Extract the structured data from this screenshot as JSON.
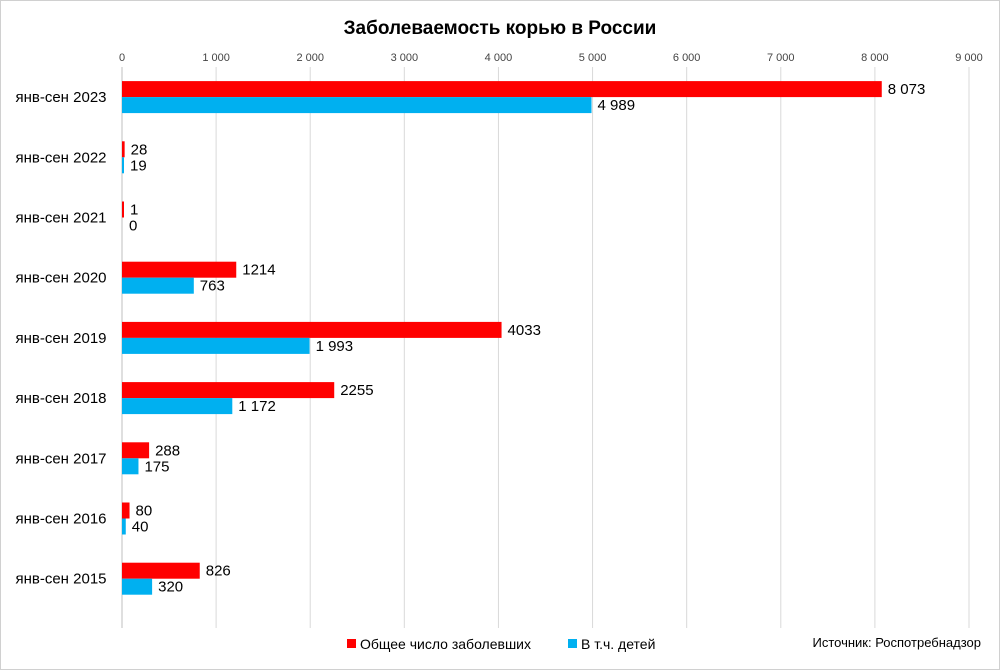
{
  "chart_data": {
    "type": "bar",
    "orientation": "horizontal",
    "title": "Заболеваемость корью в России",
    "categories": [
      "янв-сен 2023",
      "янв-сен 2022",
      "янв-сен 2021",
      "янв-сен 2020",
      "янв-сен 2019",
      "янв-сен 2018",
      "янв-сен 2017",
      "янв-сен 2016",
      "янв-сен 2015"
    ],
    "series": [
      {
        "name": "Общее число заболевших",
        "color": "#ff0000",
        "values": [
          8073,
          28,
          1,
          1214,
          4033,
          2255,
          288,
          80,
          826
        ],
        "labels": [
          "8 073",
          "28",
          "1",
          "1214",
          "4033",
          "2255",
          "288",
          "80",
          "826"
        ]
      },
      {
        "name": "В т.ч. детей",
        "color": "#00b0f0",
        "values": [
          4989,
          19,
          0,
          763,
          1993,
          1172,
          175,
          40,
          320
        ],
        "labels": [
          "4 989",
          "19",
          "0",
          "763",
          "1 993",
          "1 172",
          "175",
          "40",
          "320"
        ]
      }
    ],
    "xlim": [
      0,
      9000
    ],
    "ticks": [
      0,
      1000,
      2000,
      3000,
      4000,
      5000,
      6000,
      7000,
      8000,
      9000
    ],
    "tick_labels": [
      "0",
      "1 000",
      "2 000",
      "3 000",
      "4 000",
      "5 000",
      "6 000",
      "7 000",
      "8 000",
      "9 000"
    ],
    "axis_position": "top",
    "grid": true,
    "legend_position": "bottom",
    "source": "Источник: Роспотребнадзор"
  }
}
